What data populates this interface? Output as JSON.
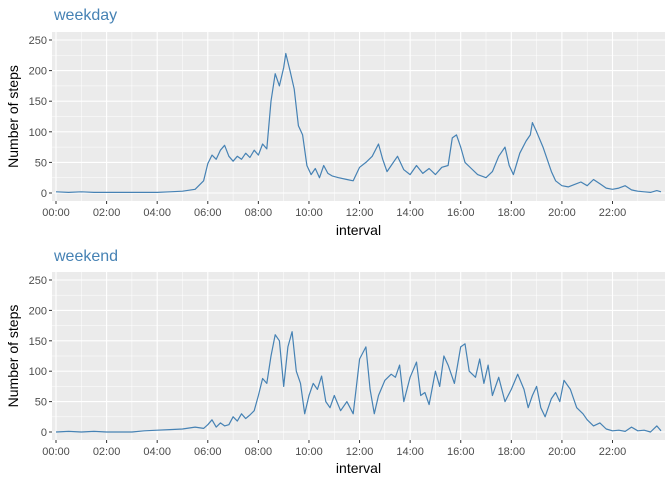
{
  "chart_data": [
    {
      "type": "line",
      "title": "weekday",
      "xlabel": "interval",
      "ylabel": "Number of steps",
      "ylim": [
        0,
        250
      ],
      "y_ticks": [
        0,
        50,
        100,
        150,
        200,
        250
      ],
      "xlim": [
        "00:00",
        "23:55"
      ],
      "x_tick_labels": [
        "00:00",
        "02:00",
        "04:00",
        "06:00",
        "08:00",
        "10:00",
        "12:00",
        "14:00",
        "16:00",
        "18:00",
        "20:00",
        "22:00"
      ],
      "grid": true,
      "series_color": "#4682b4",
      "points": [
        [
          "00:00",
          2
        ],
        [
          "00:30",
          1
        ],
        [
          "01:00",
          2
        ],
        [
          "01:30",
          1
        ],
        [
          "02:00",
          1
        ],
        [
          "02:30",
          1
        ],
        [
          "03:00",
          1
        ],
        [
          "03:30",
          1
        ],
        [
          "04:00",
          1
        ],
        [
          "04:30",
          2
        ],
        [
          "05:00",
          3
        ],
        [
          "05:30",
          6
        ],
        [
          "05:50",
          20
        ],
        [
          "06:00",
          48
        ],
        [
          "06:10",
          62
        ],
        [
          "06:20",
          55
        ],
        [
          "06:30",
          70
        ],
        [
          "06:40",
          78
        ],
        [
          "06:50",
          60
        ],
        [
          "07:00",
          52
        ],
        [
          "07:10",
          60
        ],
        [
          "07:20",
          55
        ],
        [
          "07:30",
          65
        ],
        [
          "07:40",
          58
        ],
        [
          "07:50",
          70
        ],
        [
          "08:00",
          62
        ],
        [
          "08:10",
          80
        ],
        [
          "08:20",
          72
        ],
        [
          "08:30",
          150
        ],
        [
          "08:40",
          195
        ],
        [
          "08:50",
          175
        ],
        [
          "09:00",
          205
        ],
        [
          "09:05",
          228
        ],
        [
          "09:15",
          200
        ],
        [
          "09:25",
          170
        ],
        [
          "09:35",
          110
        ],
        [
          "09:45",
          95
        ],
        [
          "09:55",
          45
        ],
        [
          "10:05",
          30
        ],
        [
          "10:15",
          40
        ],
        [
          "10:25",
          25
        ],
        [
          "10:35",
          45
        ],
        [
          "10:45",
          32
        ],
        [
          "10:55",
          28
        ],
        [
          "11:10",
          25
        ],
        [
          "11:30",
          22
        ],
        [
          "11:45",
          20
        ],
        [
          "12:00",
          42
        ],
        [
          "12:15",
          50
        ],
        [
          "12:30",
          60
        ],
        [
          "12:45",
          80
        ],
        [
          "12:55",
          55
        ],
        [
          "13:05",
          35
        ],
        [
          "13:15",
          45
        ],
        [
          "13:30",
          60
        ],
        [
          "13:45",
          38
        ],
        [
          "14:00",
          30
        ],
        [
          "14:15",
          45
        ],
        [
          "14:30",
          32
        ],
        [
          "14:45",
          40
        ],
        [
          "15:00",
          30
        ],
        [
          "15:15",
          42
        ],
        [
          "15:30",
          45
        ],
        [
          "15:40",
          90
        ],
        [
          "15:50",
          95
        ],
        [
          "16:00",
          75
        ],
        [
          "16:10",
          50
        ],
        [
          "16:25",
          40
        ],
        [
          "16:40",
          30
        ],
        [
          "17:00",
          25
        ],
        [
          "17:15",
          35
        ],
        [
          "17:30",
          60
        ],
        [
          "17:45",
          75
        ],
        [
          "17:55",
          45
        ],
        [
          "18:05",
          30
        ],
        [
          "18:20",
          65
        ],
        [
          "18:35",
          85
        ],
        [
          "18:45",
          95
        ],
        [
          "18:50",
          115
        ],
        [
          "19:00",
          100
        ],
        [
          "19:15",
          75
        ],
        [
          "19:25",
          55
        ],
        [
          "19:35",
          35
        ],
        [
          "19:45",
          20
        ],
        [
          "20:00",
          12
        ],
        [
          "20:15",
          10
        ],
        [
          "20:30",
          14
        ],
        [
          "20:45",
          18
        ],
        [
          "21:00",
          12
        ],
        [
          "21:15",
          22
        ],
        [
          "21:30",
          15
        ],
        [
          "21:45",
          8
        ],
        [
          "22:00",
          6
        ],
        [
          "22:15",
          8
        ],
        [
          "22:30",
          12
        ],
        [
          "22:45",
          5
        ],
        [
          "23:00",
          3
        ],
        [
          "23:15",
          2
        ],
        [
          "23:30",
          1
        ],
        [
          "23:45",
          4
        ],
        [
          "23:55",
          2
        ]
      ]
    },
    {
      "type": "line",
      "title": "weekend",
      "xlabel": "interval",
      "ylabel": "Number of steps",
      "ylim": [
        0,
        250
      ],
      "y_ticks": [
        0,
        50,
        100,
        150,
        200,
        250
      ],
      "xlim": [
        "00:00",
        "23:55"
      ],
      "x_tick_labels": [
        "00:00",
        "02:00",
        "04:00",
        "06:00",
        "08:00",
        "10:00",
        "12:00",
        "14:00",
        "16:00",
        "18:00",
        "20:00",
        "22:00"
      ],
      "grid": true,
      "series_color": "#4682b4",
      "points": [
        [
          "00:00",
          0
        ],
        [
          "00:30",
          1
        ],
        [
          "01:00",
          0
        ],
        [
          "01:30",
          1
        ],
        [
          "02:00",
          0
        ],
        [
          "02:30",
          0
        ],
        [
          "03:00",
          0
        ],
        [
          "03:30",
          2
        ],
        [
          "04:00",
          3
        ],
        [
          "04:30",
          4
        ],
        [
          "05:00",
          5
        ],
        [
          "05:30",
          8
        ],
        [
          "05:50",
          6
        ],
        [
          "06:00",
          12
        ],
        [
          "06:10",
          20
        ],
        [
          "06:20",
          8
        ],
        [
          "06:30",
          15
        ],
        [
          "06:40",
          10
        ],
        [
          "06:50",
          12
        ],
        [
          "07:00",
          25
        ],
        [
          "07:10",
          18
        ],
        [
          "07:20",
          30
        ],
        [
          "07:30",
          22
        ],
        [
          "07:40",
          28
        ],
        [
          "07:50",
          35
        ],
        [
          "08:00",
          60
        ],
        [
          "08:10",
          88
        ],
        [
          "08:20",
          80
        ],
        [
          "08:30",
          125
        ],
        [
          "08:40",
          160
        ],
        [
          "08:50",
          150
        ],
        [
          "09:00",
          75
        ],
        [
          "09:10",
          140
        ],
        [
          "09:20",
          165
        ],
        [
          "09:30",
          100
        ],
        [
          "09:40",
          80
        ],
        [
          "09:50",
          30
        ],
        [
          "10:00",
          60
        ],
        [
          "10:10",
          80
        ],
        [
          "10:20",
          70
        ],
        [
          "10:30",
          92
        ],
        [
          "10:40",
          50
        ],
        [
          "10:50",
          40
        ],
        [
          "11:00",
          60
        ],
        [
          "11:15",
          35
        ],
        [
          "11:30",
          50
        ],
        [
          "11:45",
          30
        ],
        [
          "12:00",
          120
        ],
        [
          "12:15",
          140
        ],
        [
          "12:25",
          70
        ],
        [
          "12:35",
          30
        ],
        [
          "12:45",
          60
        ],
        [
          "13:00",
          85
        ],
        [
          "13:15",
          95
        ],
        [
          "13:25",
          90
        ],
        [
          "13:35",
          110
        ],
        [
          "13:45",
          50
        ],
        [
          "14:00",
          90
        ],
        [
          "14:15",
          115
        ],
        [
          "14:25",
          60
        ],
        [
          "14:35",
          65
        ],
        [
          "14:45",
          45
        ],
        [
          "15:00",
          100
        ],
        [
          "15:10",
          75
        ],
        [
          "15:20",
          125
        ],
        [
          "15:30",
          110
        ],
        [
          "15:45",
          80
        ],
        [
          "16:00",
          140
        ],
        [
          "16:10",
          145
        ],
        [
          "16:20",
          100
        ],
        [
          "16:35",
          90
        ],
        [
          "16:45",
          120
        ],
        [
          "16:55",
          80
        ],
        [
          "17:05",
          110
        ],
        [
          "17:15",
          60
        ],
        [
          "17:30",
          90
        ],
        [
          "17:45",
          50
        ],
        [
          "18:00",
          70
        ],
        [
          "18:15",
          95
        ],
        [
          "18:30",
          70
        ],
        [
          "18:40",
          40
        ],
        [
          "18:50",
          60
        ],
        [
          "19:00",
          75
        ],
        [
          "19:10",
          40
        ],
        [
          "19:20",
          25
        ],
        [
          "19:35",
          55
        ],
        [
          "19:45",
          65
        ],
        [
          "19:55",
          50
        ],
        [
          "20:05",
          85
        ],
        [
          "20:20",
          70
        ],
        [
          "20:35",
          40
        ],
        [
          "20:50",
          30
        ],
        [
          "21:00",
          20
        ],
        [
          "21:15",
          10
        ],
        [
          "21:30",
          15
        ],
        [
          "21:45",
          5
        ],
        [
          "22:00",
          2
        ],
        [
          "22:15",
          3
        ],
        [
          "22:30",
          1
        ],
        [
          "22:45",
          8
        ],
        [
          "23:00",
          2
        ],
        [
          "23:15",
          3
        ],
        [
          "23:30",
          0
        ],
        [
          "23:45",
          10
        ],
        [
          "23:55",
          2
        ]
      ]
    }
  ]
}
